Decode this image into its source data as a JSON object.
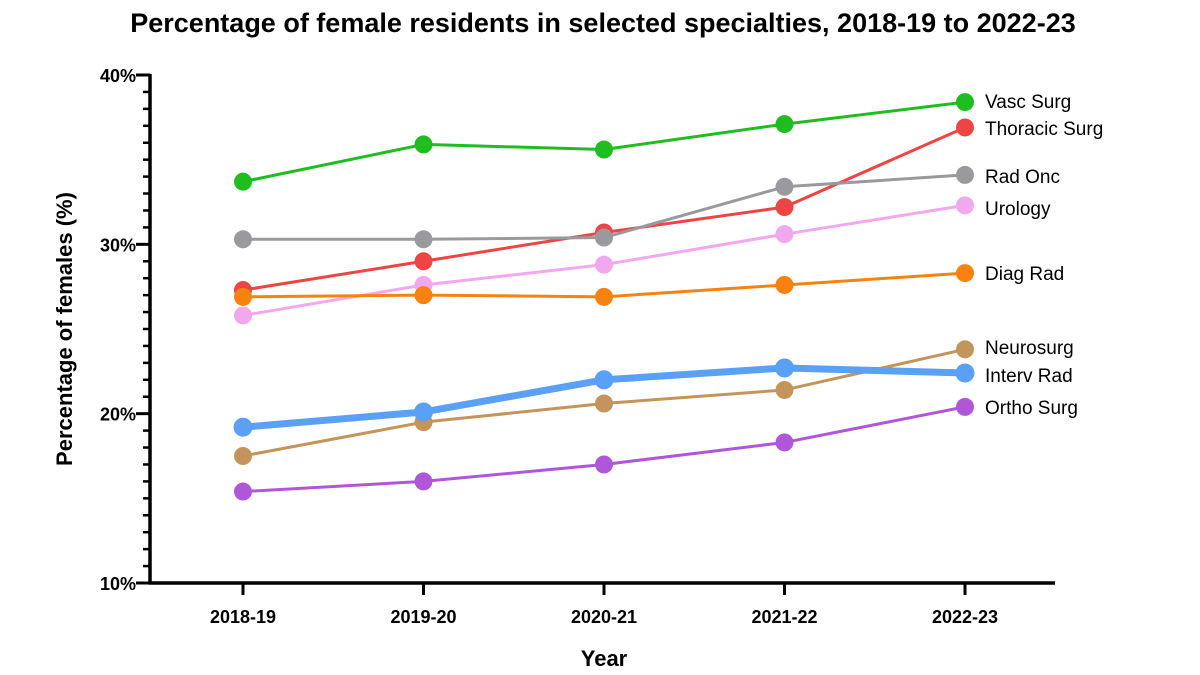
{
  "chart_data": {
    "type": "line",
    "title": "Percentage of female residents in selected specialties, 2018-19 to 2022-23",
    "xlabel": "Year",
    "ylabel": "Percentage of females (%)",
    "categories": [
      "2018-19",
      "2019-20",
      "2020-21",
      "2021-22",
      "2022-23"
    ],
    "ylim": [
      10,
      40
    ],
    "yticks": [
      10,
      20,
      30,
      40
    ],
    "ytick_labels": [
      "10%",
      "20%",
      "30%",
      "40%"
    ],
    "legend_placement": "right end of each line",
    "series": [
      {
        "name": "Vasc Surg",
        "color": "#1fbd1f",
        "values": [
          33.7,
          35.9,
          35.6,
          37.1,
          38.4
        ],
        "emphasis": false
      },
      {
        "name": "Thoracic Surg",
        "color": "#ee4444",
        "values": [
          27.3,
          29.0,
          30.7,
          32.2,
          36.9
        ],
        "emphasis": false
      },
      {
        "name": "Rad Onc",
        "color": "#9a9a9e",
        "values": [
          30.3,
          30.3,
          30.4,
          33.4,
          34.1
        ],
        "emphasis": false
      },
      {
        "name": "Urology",
        "color": "#f2a8ee",
        "values": [
          25.8,
          27.6,
          28.8,
          30.6,
          32.3
        ],
        "emphasis": false
      },
      {
        "name": "Diag Rad",
        "color": "#f7820f",
        "values": [
          26.9,
          27.0,
          26.9,
          27.6,
          28.3
        ],
        "emphasis": false
      },
      {
        "name": "Neurosurg",
        "color": "#c4955a",
        "values": [
          17.5,
          19.5,
          20.6,
          21.4,
          23.8
        ],
        "emphasis": false
      },
      {
        "name": "Interv Rad",
        "color": "#5aa0f5",
        "values": [
          19.2,
          20.1,
          22.0,
          22.7,
          22.4
        ],
        "emphasis": true
      },
      {
        "name": "Ortho Surg",
        "color": "#b057d9",
        "values": [
          15.4,
          16.0,
          17.0,
          18.3,
          20.4
        ],
        "emphasis": false
      }
    ]
  }
}
